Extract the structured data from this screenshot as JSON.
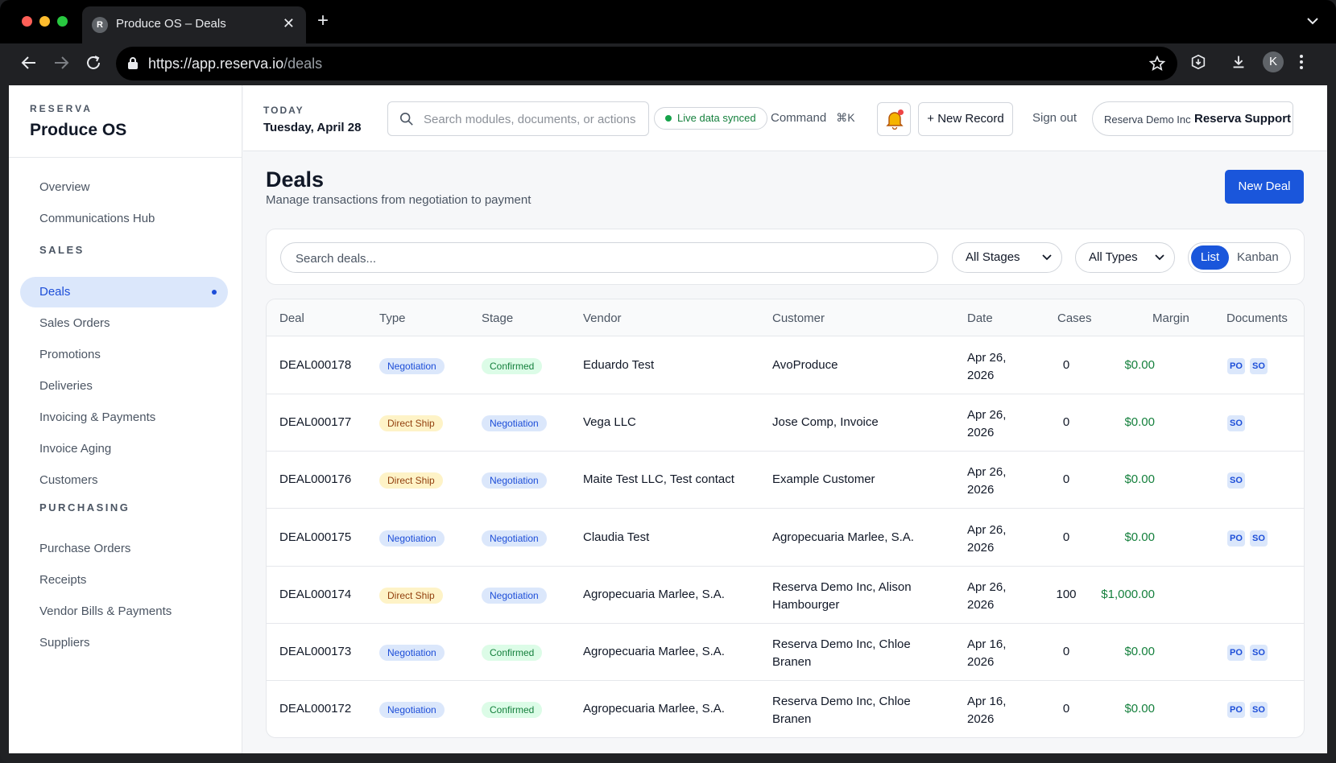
{
  "browser": {
    "tab_favicon_letter": "R",
    "tab_title": "Produce OS – Deals",
    "url_host": "https://app.reserva.io",
    "url_path": "/deals",
    "profile_letter": "K"
  },
  "sidebar": {
    "brand_small": "RESERVA",
    "brand_name": "Produce OS",
    "top_items": [
      {
        "label": "Overview"
      },
      {
        "label": "Communications Hub"
      }
    ],
    "sales_title": "SALES",
    "sales_items": [
      {
        "label": "Deals",
        "active": true
      },
      {
        "label": "Sales Orders"
      },
      {
        "label": "Promotions"
      },
      {
        "label": "Deliveries"
      },
      {
        "label": "Invoicing & Payments"
      },
      {
        "label": "Invoice Aging"
      },
      {
        "label": "Customers"
      }
    ],
    "purchasing_title": "PURCHASING",
    "purchasing_items": [
      {
        "label": "Purchase Orders"
      },
      {
        "label": "Receipts"
      },
      {
        "label": "Vendor Bills & Payments"
      },
      {
        "label": "Suppliers"
      }
    ]
  },
  "topbar": {
    "today_label": "TODAY",
    "today_date": "Tuesday, April 28",
    "search_placeholder": "Search modules, documents, or actions",
    "live_status": "Live data synced",
    "command_label": "Command",
    "command_shortcut": "⌘K",
    "new_record": "+ New Record",
    "sign_out": "Sign out",
    "org_name": "Reserva Demo Inc",
    "support": "Reserva Support"
  },
  "main": {
    "title": "Deals",
    "subtitle": "Manage transactions from negotiation to payment",
    "new_deal": "New Deal",
    "filters": {
      "search_placeholder": "Search deals...",
      "stage_value": "All Stages",
      "type_value": "All Types",
      "view_list": "List",
      "view_kanban": "Kanban"
    },
    "table": {
      "columns": [
        "Deal",
        "Type",
        "Stage",
        "Vendor",
        "Customer",
        "Date",
        "Cases",
        "Margin",
        "Documents"
      ],
      "rows": [
        {
          "deal": "DEAL000178",
          "type": "Negotiation",
          "stage": "Confirmed",
          "vendor": "Eduardo Test",
          "customer_1": "AvoProduce",
          "customer_2": "",
          "date_1": "Apr 26,",
          "date_2": "2026",
          "cases": "0",
          "margin": "$0.00",
          "docs": [
            "PO",
            "SO"
          ]
        },
        {
          "deal": "DEAL000177",
          "type": "Direct Ship",
          "stage": "Negotiation",
          "vendor": "Vega LLC",
          "customer_1": "Jose Comp, Invoice",
          "customer_2": "",
          "date_1": "Apr 26,",
          "date_2": "2026",
          "cases": "0",
          "margin": "$0.00",
          "docs": [
            "SO"
          ]
        },
        {
          "deal": "DEAL000176",
          "type": "Direct Ship",
          "stage": "Negotiation",
          "vendor": "Maite Test LLC, Test contact",
          "customer_1": "Example Customer",
          "customer_2": "",
          "date_1": "Apr 26,",
          "date_2": "2026",
          "cases": "0",
          "margin": "$0.00",
          "docs": [
            "SO"
          ]
        },
        {
          "deal": "DEAL000175",
          "type": "Negotiation",
          "stage": "Negotiation",
          "vendor": "Claudia Test",
          "customer_1": "Agropecuaria Marlee, S.A.",
          "customer_2": "",
          "date_1": "Apr 26,",
          "date_2": "2026",
          "cases": "0",
          "margin": "$0.00",
          "docs": [
            "PO",
            "SO"
          ]
        },
        {
          "deal": "DEAL000174",
          "type": "Direct Ship",
          "stage": "Negotiation",
          "vendor": "Agropecuaria Marlee, S.A.",
          "customer_1": "Reserva Demo Inc, Alison",
          "customer_2": "Hambourger",
          "date_1": "Apr 26,",
          "date_2": "2026",
          "cases": "100",
          "margin": "$1,000.00",
          "docs": []
        },
        {
          "deal": "DEAL000173",
          "type": "Negotiation",
          "stage": "Confirmed",
          "vendor": "Agropecuaria Marlee, S.A.",
          "customer_1": "Reserva Demo Inc, Chloe",
          "customer_2": "Branen",
          "date_1": "Apr 16,",
          "date_2": "2026",
          "cases": "0",
          "margin": "$0.00",
          "docs": [
            "PO",
            "SO"
          ]
        },
        {
          "deal": "DEAL000172",
          "type": "Negotiation",
          "stage": "Confirmed",
          "vendor": "Agropecuaria Marlee, S.A.",
          "customer_1": "Reserva Demo Inc, Chloe",
          "customer_2": "Branen",
          "date_1": "Apr 16,",
          "date_2": "2026",
          "cases": "0",
          "margin": "$0.00",
          "docs": [
            "PO",
            "SO"
          ]
        }
      ]
    }
  },
  "colors": {
    "accent": "#1a56db",
    "active_nav_bg": "#dbe7fb",
    "negotiation_badge": "#dbe7fb",
    "direct_ship_badge": "#fef3c7",
    "confirmed_badge": "#dcfce7",
    "margin_text": "#15803d",
    "notification_dot": "#ef4444"
  }
}
